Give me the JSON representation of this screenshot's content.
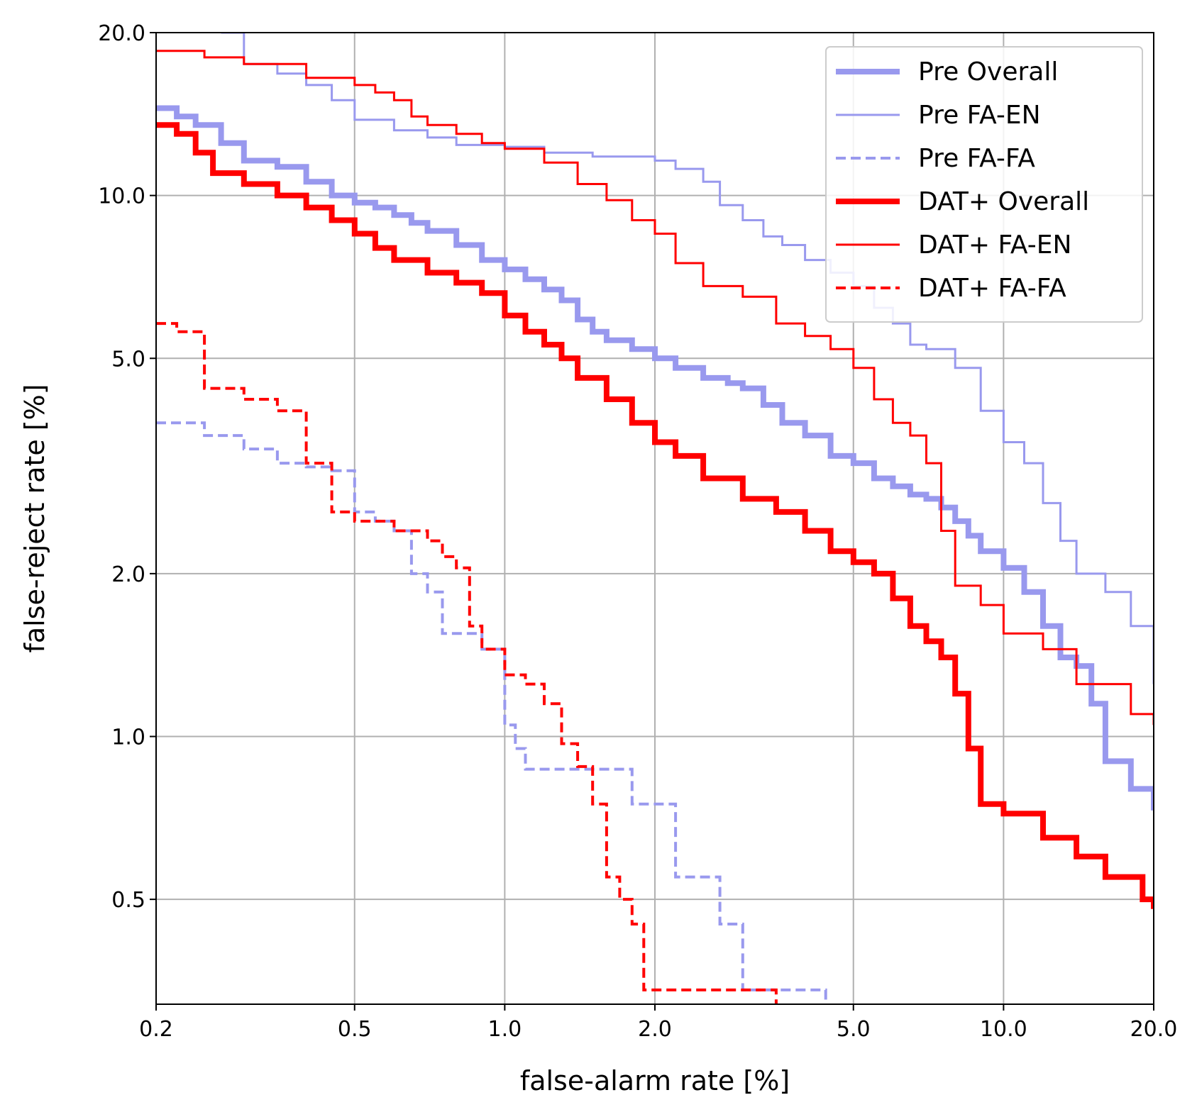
{
  "chart_data": {
    "type": "line",
    "title": "",
    "xlabel": "false-alarm rate [%]",
    "ylabel": "false-reject rate [%]",
    "xscale": "log",
    "yscale": "log",
    "xlim": [
      0.2,
      20.0
    ],
    "ylim": [
      0.32,
      20.0
    ],
    "xticks": [
      0.2,
      0.5,
      1.0,
      2.0,
      5.0,
      10.0,
      20.0
    ],
    "xtick_labels": [
      "0.2",
      "0.5",
      "1.0",
      "2.0",
      "5.0",
      "10.0",
      "20.0"
    ],
    "yticks": [
      0.5,
      1.0,
      2.0,
      5.0,
      10.0,
      20.0
    ],
    "ytick_labels": [
      "0.5",
      "1.0",
      "2.0",
      "5.0",
      "10.0",
      "20.0"
    ],
    "grid": true,
    "legend_position": "top-right",
    "series": [
      {
        "name": "Pre Overall",
        "color": "#9999ee",
        "width": 8,
        "dash": "solid",
        "x": [
          0.2,
          0.22,
          0.24,
          0.27,
          0.3,
          0.35,
          0.4,
          0.45,
          0.5,
          0.55,
          0.6,
          0.65,
          0.7,
          0.8,
          0.9,
          1.0,
          1.1,
          1.2,
          1.3,
          1.4,
          1.5,
          1.6,
          1.8,
          2.0,
          2.2,
          2.5,
          2.8,
          3.0,
          3.3,
          3.6,
          4.0,
          4.5,
          5.0,
          5.5,
          6.0,
          6.5,
          7.0,
          7.5,
          8.0,
          8.5,
          9.0,
          10.0,
          11.0,
          12.0,
          13.0,
          14.0,
          15.0,
          16.0,
          18.0,
          20.0
        ],
        "y": [
          14.5,
          14.0,
          13.5,
          12.5,
          11.6,
          11.3,
          10.6,
          10.0,
          9.7,
          9.5,
          9.2,
          8.9,
          8.6,
          8.1,
          7.6,
          7.3,
          7.0,
          6.7,
          6.4,
          5.9,
          5.6,
          5.4,
          5.2,
          5.0,
          4.8,
          4.6,
          4.5,
          4.4,
          4.1,
          3.8,
          3.6,
          3.3,
          3.2,
          3.0,
          2.9,
          2.8,
          2.75,
          2.65,
          2.5,
          2.35,
          2.2,
          2.05,
          1.85,
          1.6,
          1.4,
          1.35,
          1.15,
          0.9,
          0.8,
          0.73
        ]
      },
      {
        "name": "Pre FA-EN",
        "color": "#9999ee",
        "width": 3,
        "dash": "solid",
        "x": [
          0.27,
          0.3,
          0.35,
          0.4,
          0.45,
          0.5,
          0.6,
          0.7,
          0.8,
          1.0,
          1.2,
          1.5,
          2.0,
          2.2,
          2.5,
          2.7,
          3.0,
          3.3,
          3.6,
          4.0,
          4.5,
          5.0,
          5.5,
          6.0,
          6.5,
          7.0,
          8.0,
          9.0,
          10.0,
          11.0,
          12.0,
          13.0,
          14.0,
          16.0,
          18.0,
          20.0
        ],
        "y": [
          20.0,
          17.5,
          16.8,
          16.0,
          15.0,
          13.8,
          13.2,
          12.8,
          12.4,
          12.3,
          12.0,
          11.8,
          11.6,
          11.2,
          10.6,
          9.6,
          9.0,
          8.4,
          8.1,
          7.6,
          7.2,
          6.8,
          6.2,
          5.8,
          5.3,
          5.2,
          4.8,
          4.0,
          3.5,
          3.2,
          2.7,
          2.3,
          2.0,
          1.85,
          1.6,
          1.25
        ]
      },
      {
        "name": "Pre FA-FA",
        "color": "#9999ee",
        "width": 4,
        "dash": "dashed",
        "x": [
          0.2,
          0.25,
          0.3,
          0.35,
          0.4,
          0.45,
          0.5,
          0.55,
          0.6,
          0.65,
          0.7,
          0.75,
          0.9,
          1.0,
          1.05,
          1.1,
          1.5,
          1.8,
          2.2,
          2.7,
          3.0,
          3.3,
          4.4
        ],
        "y": [
          3.8,
          3.6,
          3.4,
          3.2,
          3.15,
          3.1,
          2.6,
          2.5,
          2.4,
          2.0,
          1.85,
          1.55,
          1.45,
          1.05,
          0.95,
          0.87,
          0.87,
          0.75,
          0.55,
          0.45,
          0.34,
          0.34,
          0.32
        ]
      },
      {
        "name": "DAT+ Overall",
        "color": "#ff0000",
        "width": 8,
        "dash": "solid",
        "x": [
          0.2,
          0.22,
          0.24,
          0.26,
          0.3,
          0.35,
          0.4,
          0.45,
          0.5,
          0.55,
          0.6,
          0.7,
          0.8,
          0.9,
          1.0,
          1.1,
          1.2,
          1.3,
          1.4,
          1.6,
          1.8,
          2.0,
          2.2,
          2.5,
          3.0,
          3.5,
          4.0,
          4.5,
          5.0,
          5.5,
          6.0,
          6.5,
          7.0,
          7.5,
          8.0,
          8.5,
          9.0,
          10.0,
          12.0,
          14.0,
          16.0,
          19.0,
          20.0
        ],
        "y": [
          13.5,
          13.0,
          12.0,
          11.0,
          10.5,
          10.0,
          9.5,
          9.0,
          8.5,
          8.0,
          7.6,
          7.2,
          6.9,
          6.6,
          6.0,
          5.6,
          5.3,
          5.0,
          4.6,
          4.2,
          3.8,
          3.5,
          3.3,
          3.0,
          2.75,
          2.6,
          2.4,
          2.2,
          2.1,
          2.0,
          1.8,
          1.6,
          1.5,
          1.4,
          1.2,
          0.95,
          0.75,
          0.72,
          0.65,
          0.6,
          0.55,
          0.5,
          0.48
        ]
      },
      {
        "name": "DAT+ FA-EN",
        "color": "#ff0000",
        "width": 3,
        "dash": "solid",
        "x": [
          0.2,
          0.25,
          0.3,
          0.4,
          0.5,
          0.55,
          0.6,
          0.65,
          0.7,
          0.8,
          0.9,
          1.0,
          1.2,
          1.4,
          1.6,
          1.8,
          2.0,
          2.2,
          2.5,
          3.0,
          3.5,
          4.0,
          4.5,
          5.0,
          5.5,
          6.0,
          6.5,
          7.0,
          7.5,
          8.0,
          9.0,
          10.0,
          12.0,
          14.0,
          18.0,
          20.0
        ],
        "y": [
          18.5,
          18.0,
          17.5,
          16.5,
          16.0,
          15.5,
          15.0,
          14.0,
          13.5,
          13.0,
          12.5,
          12.2,
          11.5,
          10.5,
          9.8,
          9.0,
          8.5,
          7.5,
          6.8,
          6.5,
          5.8,
          5.5,
          5.2,
          4.8,
          4.2,
          3.8,
          3.6,
          3.2,
          2.4,
          1.9,
          1.75,
          1.55,
          1.45,
          1.25,
          1.1,
          1.05
        ]
      },
      {
        "name": "DAT+ FA-FA",
        "color": "#ff0000",
        "width": 4,
        "dash": "dashed",
        "x": [
          0.2,
          0.22,
          0.25,
          0.3,
          0.35,
          0.4,
          0.45,
          0.5,
          0.6,
          0.7,
          0.75,
          0.8,
          0.85,
          0.9,
          1.0,
          1.1,
          1.2,
          1.3,
          1.4,
          1.5,
          1.6,
          1.7,
          1.8,
          1.9,
          2.5,
          3.0,
          3.5
        ],
        "y": [
          5.8,
          5.6,
          4.4,
          4.2,
          4.0,
          3.2,
          2.6,
          2.5,
          2.4,
          2.3,
          2.15,
          2.05,
          1.6,
          1.45,
          1.3,
          1.25,
          1.15,
          0.97,
          0.88,
          0.75,
          0.55,
          0.5,
          0.45,
          0.34,
          0.34,
          0.34,
          0.32
        ]
      }
    ]
  }
}
